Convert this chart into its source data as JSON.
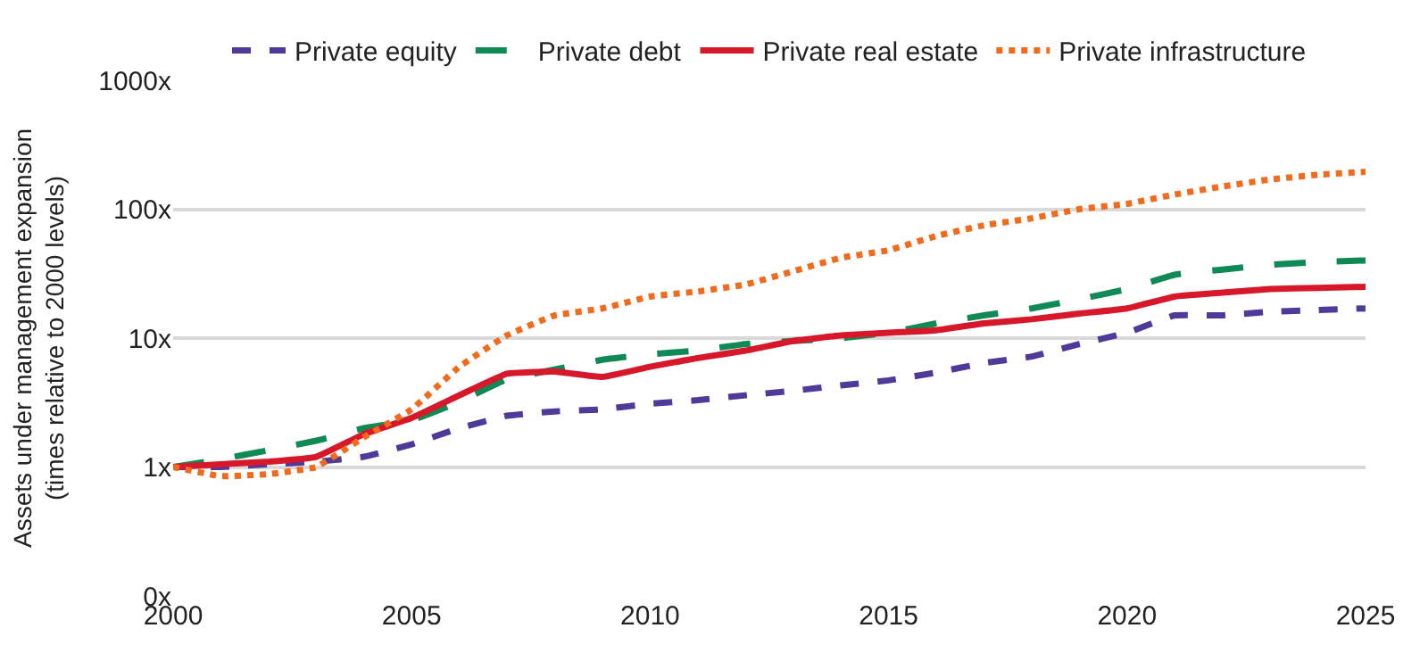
{
  "chart_data": {
    "type": "line",
    "ylabel": "Assets under management expansion\n(times relative to 2000 levels)",
    "x": [
      2000,
      2001,
      2002,
      2003,
      2004,
      2005,
      2006,
      2007,
      2008,
      2009,
      2010,
      2011,
      2012,
      2013,
      2014,
      2015,
      2016,
      2017,
      2018,
      2019,
      2020,
      2021,
      2022,
      2023,
      2024,
      2025
    ],
    "series": [
      {
        "name": "Private equity",
        "color": "#4f3a9a",
        "line_style": "dashed",
        "values": [
          1,
          1.0,
          1.05,
          1.1,
          1.2,
          1.5,
          2.0,
          2.5,
          2.7,
          2.8,
          3.1,
          3.3,
          3.6,
          3.9,
          4.3,
          4.7,
          5.4,
          6.4,
          7.2,
          9,
          11,
          15,
          15,
          16,
          16.5,
          17
        ]
      },
      {
        "name": "Private debt",
        "color": "#0f8a55",
        "line_style": "longdash",
        "values": [
          1,
          1.15,
          1.35,
          1.6,
          2.0,
          2.3,
          3.2,
          4.8,
          5.7,
          6.8,
          7.5,
          8,
          9,
          9.5,
          10,
          11,
          13,
          15,
          17,
          20,
          24,
          31,
          34,
          37,
          39,
          40
        ]
      },
      {
        "name": "Private real estate",
        "color": "#d7182a",
        "line_style": "solid",
        "values": [
          1,
          1.05,
          1.1,
          1.2,
          1.8,
          2.4,
          3.6,
          5.3,
          5.5,
          5.0,
          6,
          7,
          8,
          9.5,
          10.5,
          11,
          11.5,
          13,
          14,
          15.5,
          17,
          21,
          22.5,
          24,
          24.5,
          25
        ]
      },
      {
        "name": "Private infrastructure",
        "color": "#f26a1b",
        "line_style": "dotted",
        "values": [
          1,
          0.85,
          0.88,
          1.0,
          1.7,
          2.8,
          6,
          10.5,
          15,
          17,
          21,
          23,
          26,
          33,
          42,
          48,
          62,
          75,
          85,
          100,
          110,
          130,
          150,
          170,
          185,
          195
        ]
      }
    ],
    "log": "y",
    "xlim": [
      2000,
      2025
    ],
    "xticks": [
      2000,
      2005,
      2010,
      2015,
      2020,
      2025
    ],
    "ylim": [
      0.1,
      1000
    ],
    "yticks": [
      {
        "value": 0.1,
        "label": "0x"
      },
      {
        "value": 1,
        "label": "1x"
      },
      {
        "value": 10,
        "label": "10x"
      },
      {
        "value": 100,
        "label": "100x"
      },
      {
        "value": 1000,
        "label": "1000x"
      }
    ],
    "grid": "y",
    "legend": "top",
    "marker": "none"
  }
}
